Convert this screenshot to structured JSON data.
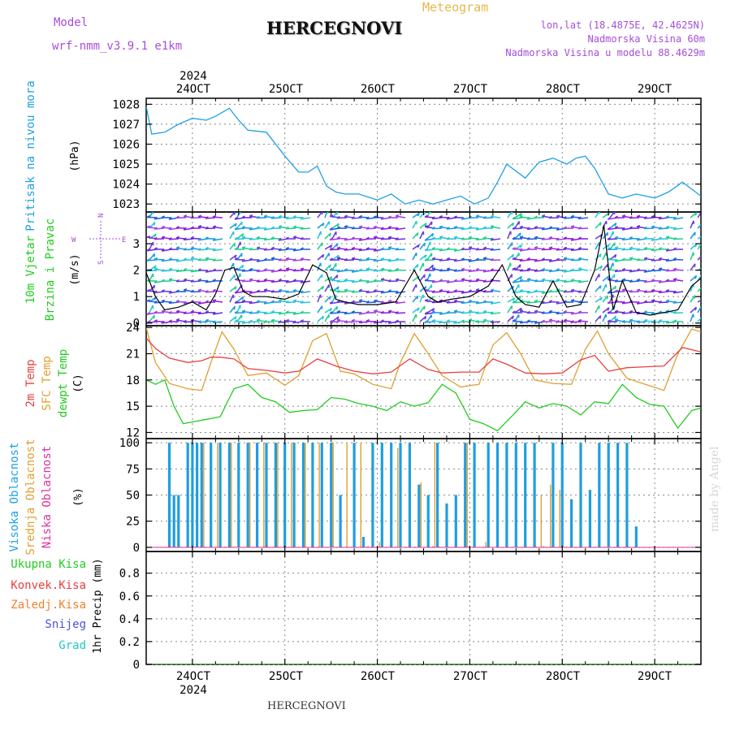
{
  "header": {
    "model_label": "Model",
    "model_name": "wrf-nmm_v3.9.1 e1km",
    "title": "HERCEGNOVI",
    "subtitle": "Meteogram",
    "coords": "lon,lat (18.4875E, 42.4625N)",
    "elevation": "Nadmorska Visina 60m",
    "model_elevation": "Nadmorska Visina u modelu 88.4629m"
  },
  "footer": {
    "station": "HERCEGNOVI",
    "made_by": "made by Angel"
  },
  "colors": {
    "pressure": "#1ea0e6",
    "temp2m": "#e84040",
    "sfc": "#e0a030",
    "dew": "#22cc22",
    "high_cloud": "#1e9ee0",
    "mid_cloud": "#e0a030",
    "low_cloud": "#e030a0",
    "grid": "#888888"
  },
  "chart_data": [
    {
      "type": "line",
      "panel": "pressure",
      "ylabel_rotated": "Pritisak na nivou mora",
      "unit": "(hPa)",
      "yticks": [
        1023,
        1024,
        1025,
        1026,
        1027,
        1028
      ],
      "ylim": [
        1022.6,
        1028.3
      ],
      "xlim_days": [
        23.5,
        29.5
      ],
      "x_ticks": [
        "24OCT",
        "25OCT",
        "26OCT",
        "27OCT",
        "28OCT",
        "29OCT"
      ],
      "year": "2024",
      "series": [
        {
          "x": [
            23.5,
            23.56,
            23.7,
            23.85,
            24.0,
            24.15,
            24.25,
            24.4,
            24.5,
            24.6,
            24.8,
            25.0,
            25.15,
            25.25,
            25.35,
            25.45,
            25.55,
            25.65,
            25.8,
            26.0,
            26.15,
            26.3,
            26.45,
            26.6,
            26.75,
            26.9,
            27.05,
            27.2,
            27.3,
            27.4,
            27.6,
            27.75,
            27.9,
            28.05,
            28.15,
            28.25,
            28.35,
            28.5,
            28.65,
            28.8,
            29.0,
            29.15,
            29.3,
            29.5
          ],
          "y": [
            1027.9,
            1026.5,
            1026.6,
            1027.0,
            1027.3,
            1027.2,
            1027.4,
            1027.8,
            1027.2,
            1026.7,
            1026.6,
            1025.4,
            1024.6,
            1024.6,
            1024.9,
            1023.9,
            1023.6,
            1023.5,
            1023.5,
            1023.2,
            1023.5,
            1023.0,
            1023.2,
            1023.0,
            1023.2,
            1023.4,
            1023.0,
            1023.3,
            1024.1,
            1025.0,
            1024.3,
            1025.1,
            1025.3,
            1025.0,
            1025.3,
            1025.4,
            1024.8,
            1023.5,
            1023.3,
            1023.5,
            1023.3,
            1023.6,
            1024.1,
            1023.4
          ]
        }
      ]
    },
    {
      "type": "line",
      "panel": "wind",
      "ylabel_rotated_1": "10m Vjetar",
      "ylabel_rotated_2": "Brzina i Pravac",
      "unit": "(m/s)",
      "compass": {
        "n": "N",
        "w": "W",
        "e": "E",
        "s": "S"
      },
      "yticks": [
        0,
        1,
        2,
        3
      ],
      "ylim": [
        -0.1,
        4.2
      ],
      "series": [
        {
          "name": "wind speed",
          "x": [
            23.5,
            23.6,
            23.7,
            23.85,
            24.0,
            24.15,
            24.25,
            24.35,
            24.45,
            24.55,
            24.65,
            24.8,
            25.0,
            25.15,
            25.3,
            25.45,
            25.55,
            25.65,
            25.8,
            26.0,
            26.2,
            26.4,
            26.55,
            26.65,
            26.8,
            27.0,
            27.2,
            27.35,
            27.5,
            27.6,
            27.75,
            27.9,
            28.05,
            28.2,
            28.35,
            28.45,
            28.55,
            28.65,
            28.8,
            28.95,
            29.1,
            29.25,
            29.4,
            29.5
          ],
          "y": [
            1.9,
            1.0,
            0.5,
            0.6,
            0.8,
            0.5,
            1.1,
            2.0,
            2.1,
            1.2,
            1.0,
            1.0,
            0.9,
            1.1,
            2.2,
            1.9,
            0.9,
            0.8,
            0.7,
            0.7,
            0.8,
            2.0,
            1.0,
            0.8,
            0.9,
            1.0,
            1.4,
            2.2,
            1.0,
            0.7,
            0.6,
            1.6,
            0.6,
            0.7,
            2.0,
            3.7,
            0.5,
            1.6,
            0.4,
            0.3,
            0.4,
            0.5,
            1.4,
            1.7
          ]
        }
      ]
    },
    {
      "type": "line",
      "panel": "temperature",
      "ylabel_rotated_1": "2m Temp",
      "ylabel_rotated_2": "SFC Temp",
      "ylabel_rotated_3": "dewpt Temp",
      "unit": "(C)",
      "yticks": [
        12,
        15,
        18,
        21,
        24
      ],
      "ylim": [
        11.3,
        24.2
      ],
      "series": [
        {
          "name": "2m Temp",
          "x": [
            23.5,
            23.6,
            23.75,
            23.95,
            24.1,
            24.2,
            24.3,
            24.45,
            24.6,
            24.8,
            25.0,
            25.15,
            25.35,
            25.55,
            25.75,
            25.95,
            26.15,
            26.35,
            26.55,
            26.7,
            26.9,
            27.1,
            27.25,
            27.4,
            27.6,
            27.8,
            28.0,
            28.2,
            28.35,
            28.5,
            28.7,
            28.9,
            29.1,
            29.3,
            29.5
          ],
          "y": [
            22.8,
            21.6,
            20.5,
            20.0,
            20.2,
            20.6,
            20.6,
            20.4,
            19.3,
            19.1,
            18.8,
            19.0,
            20.4,
            19.6,
            19.0,
            18.7,
            18.9,
            20.4,
            19.2,
            18.8,
            18.9,
            18.9,
            20.4,
            19.8,
            18.8,
            18.7,
            18.8,
            20.3,
            20.8,
            19.0,
            19.4,
            19.5,
            19.6,
            21.7,
            21.2
          ]
        },
        {
          "name": "SFC Temp",
          "x": [
            23.5,
            23.6,
            23.75,
            23.95,
            24.1,
            24.2,
            24.32,
            24.45,
            24.6,
            24.8,
            25.0,
            25.15,
            25.3,
            25.45,
            25.6,
            25.75,
            25.95,
            26.15,
            26.25,
            26.4,
            26.55,
            26.7,
            26.9,
            27.1,
            27.25,
            27.4,
            27.55,
            27.7,
            27.9,
            28.1,
            28.25,
            28.38,
            28.5,
            28.7,
            28.9,
            29.1,
            29.25,
            29.4,
            29.5
          ],
          "y": [
            24.0,
            20.0,
            17.6,
            17.0,
            16.8,
            20.0,
            23.5,
            21.5,
            18.5,
            18.8,
            17.4,
            18.5,
            22.5,
            23.3,
            19.0,
            18.7,
            17.5,
            17.0,
            20.0,
            23.3,
            21.0,
            18.5,
            17.2,
            17.5,
            22.0,
            23.4,
            21.0,
            18.0,
            17.6,
            17.5,
            21.5,
            23.6,
            21.0,
            18.2,
            17.5,
            16.8,
            21.0,
            23.8,
            23.5
          ]
        },
        {
          "name": "dewpt Temp",
          "x": [
            23.5,
            23.6,
            23.7,
            23.8,
            23.9,
            24.0,
            24.15,
            24.3,
            24.45,
            24.6,
            24.75,
            24.9,
            25.05,
            25.2,
            25.35,
            25.5,
            25.65,
            25.8,
            25.95,
            26.1,
            26.25,
            26.4,
            26.55,
            26.7,
            26.85,
            27.0,
            27.15,
            27.3,
            27.45,
            27.6,
            27.75,
            27.9,
            28.05,
            28.2,
            28.35,
            28.5,
            28.65,
            28.8,
            28.95,
            29.1,
            29.25,
            29.4,
            29.5
          ],
          "y": [
            18.0,
            17.5,
            18.0,
            15.0,
            13.0,
            13.2,
            13.5,
            13.8,
            17.0,
            17.5,
            16.0,
            15.5,
            14.3,
            14.5,
            14.6,
            16.0,
            15.8,
            15.3,
            15.0,
            14.5,
            15.5,
            15.0,
            15.4,
            17.5,
            16.5,
            13.5,
            13.0,
            12.2,
            13.8,
            15.5,
            14.8,
            15.3,
            15.0,
            14.0,
            15.5,
            15.3,
            17.5,
            16.0,
            15.2,
            15.0,
            12.5,
            14.5,
            14.8
          ]
        }
      ]
    },
    {
      "type": "bar",
      "panel": "clouds",
      "ylabel_rotated_1": "Visoka Oblacnost",
      "ylabel_rotated_2": "Srednja Oblacnost",
      "ylabel_rotated_3": "Niska Oblacnost",
      "unit": "(%)",
      "yticks": [
        0,
        25,
        50,
        75,
        100
      ],
      "ylim": [
        -4,
        104
      ],
      "series": [
        {
          "name": "Visoka Oblacnost",
          "x": [
            23.75,
            23.8,
            23.85,
            23.95,
            24.0,
            24.05,
            24.1,
            24.2,
            24.3,
            24.4,
            24.5,
            24.6,
            24.7,
            24.8,
            24.9,
            25.0,
            25.1,
            25.2,
            25.3,
            25.4,
            25.5,
            25.6,
            25.75,
            25.85,
            25.95,
            26.05,
            26.15,
            26.25,
            26.35,
            26.45,
            26.55,
            26.65,
            26.75,
            26.85,
            26.95,
            27.05,
            27.2,
            27.3,
            27.4,
            27.5,
            27.6,
            27.7,
            27.9,
            28.0,
            28.1,
            28.2,
            28.3,
            28.4,
            28.5,
            28.6,
            28.7,
            28.8
          ],
          "y": [
            100,
            50,
            50,
            100,
            100,
            100,
            100,
            100,
            100,
            100,
            100,
            100,
            100,
            100,
            100,
            100,
            100,
            100,
            100,
            100,
            100,
            50,
            100,
            10,
            100,
            100,
            100,
            100,
            100,
            60,
            50,
            100,
            42,
            50,
            100,
            100,
            100,
            100,
            100,
            100,
            100,
            100,
            100,
            100,
            46,
            100,
            55,
            100,
            100,
            100,
            100,
            20
          ]
        },
        {
          "name": "Srednja Oblacnost",
          "x": [
            24.1,
            24.25,
            24.4,
            24.6,
            24.75,
            24.9,
            25.05,
            25.2,
            25.35,
            25.5,
            25.65,
            25.8,
            26.0,
            26.2,
            26.45,
            26.6,
            26.95,
            27.15,
            27.75,
            27.85,
            27.95
          ],
          "y": [
            100,
            100,
            100,
            100,
            100,
            100,
            100,
            100,
            100,
            100,
            100,
            100,
            5,
            95,
            62,
            100,
            100,
            5,
            50,
            60,
            55
          ]
        },
        {
          "name": "Niska Oblacnost",
          "x": [
            23.75,
            24.3,
            24.8,
            25.3,
            25.9,
            26.6,
            27.8
          ],
          "y": [
            2,
            1,
            2,
            1,
            1,
            1,
            1
          ]
        }
      ]
    },
    {
      "type": "line",
      "panel": "precipitation",
      "legend": [
        "Ukupna Kisa",
        "Konvek.Kisa",
        "Zaledj.Kisa",
        "Snijeg",
        "Grad"
      ],
      "legend_colors": [
        "#22cc22",
        "#e84040",
        "#f08030",
        "#5050e0",
        "#20c8c8"
      ],
      "ylabel_rotated": "1hr Precip (mm)",
      "yticks": [
        0,
        0.2,
        0.4,
        0.6,
        0.8
      ],
      "ylim": [
        0,
        0.99
      ],
      "series": [
        {
          "name": "Ukupna Kisa",
          "x": [
            23.5,
            29.5
          ],
          "y": [
            0,
            0
          ]
        }
      ]
    }
  ]
}
